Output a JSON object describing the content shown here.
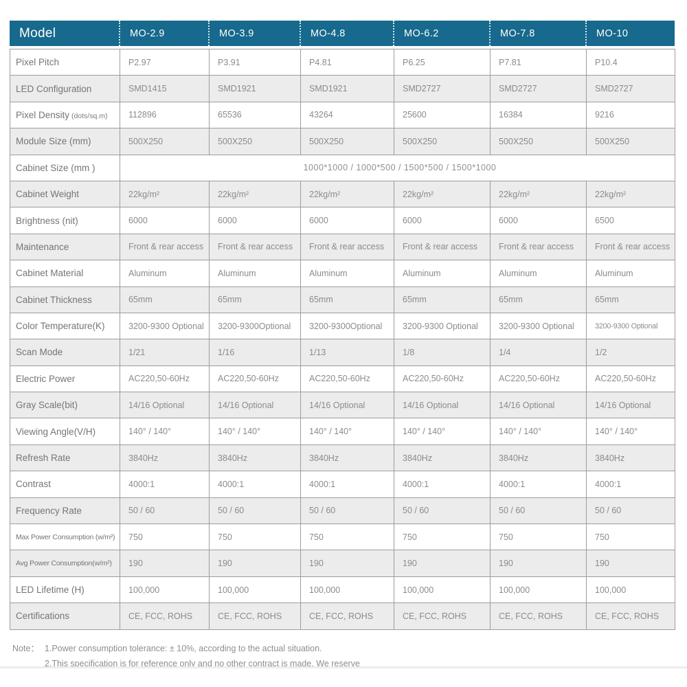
{
  "header": {
    "model_label": "Model",
    "columns": [
      "MO-2.9",
      "MO-3.9",
      "MO-4.8",
      "MO-6.2",
      "MO-7.8",
      "MO-10"
    ]
  },
  "rows": [
    {
      "label": "Pixel Pitch",
      "values": [
        "P2.97",
        "P3.91",
        "P4.81",
        "P6.25",
        "P7.81",
        "P10.4"
      ]
    },
    {
      "label": "LED Configuration",
      "values": [
        "SMD1415",
        "SMD1921",
        "SMD1921",
        "SMD2727",
        "SMD2727",
        "SMD2727"
      ]
    },
    {
      "label": "Pixel Density",
      "label_note": "(dots/sq.m)",
      "values": [
        "112896",
        "65536",
        "43264",
        "25600",
        "16384",
        "9216"
      ]
    },
    {
      "label": "Module Size (mm)",
      "values": [
        "500X250",
        "500X250",
        "500X250",
        "500X250",
        "500X250",
        "500X250"
      ]
    },
    {
      "label": "Cabinet Size (mm )",
      "merged_value": "1000*1000 / 1000*500 / 1500*500 / 1500*1000"
    },
    {
      "label": "Cabinet Weight",
      "values": [
        "22kg/m²",
        "22kg/m²",
        "22kg/m²",
        "22kg/m²",
        "22kg/m²",
        "22kg/m²"
      ]
    },
    {
      "label": "Brightness (nit)",
      "values": [
        "6000",
        "6000",
        "6000",
        "6000",
        "6000",
        "6500"
      ]
    },
    {
      "label": "Maintenance",
      "values": [
        "Front & rear access",
        "Front & rear access",
        "Front & rear access",
        "Front & rear access",
        "Front & rear access",
        "Front & rear access"
      ]
    },
    {
      "label": "Cabinet Material",
      "values": [
        "Aluminum",
        "Aluminum",
        "Aluminum",
        "Aluminum",
        "Aluminum",
        "Aluminum"
      ]
    },
    {
      "label": "Cabinet Thickness",
      "values": [
        "65mm",
        "65mm",
        "65mm",
        "65mm",
        "65mm",
        "65mm"
      ]
    },
    {
      "label": "Color Temperature(K)",
      "small_last": true,
      "values": [
        "3200-9300 Optional",
        "3200-9300Optional",
        "3200-9300Optional",
        "3200-9300 Optional",
        "3200-9300 Optional",
        "3200-9300 Optional"
      ]
    },
    {
      "label": "Scan Mode",
      "values": [
        "1/21",
        "1/16",
        "1/13",
        "1/8",
        "1/4",
        "1/2"
      ]
    },
    {
      "label": "Electric Power",
      "values": [
        "AC220,50-60Hz",
        "AC220,50-60Hz",
        "AC220,50-60Hz",
        "AC220,50-60Hz",
        "AC220,50-60Hz",
        "AC220,50-60Hz"
      ]
    },
    {
      "label": "Gray Scale(bit)",
      "values": [
        "14/16 Optional",
        "14/16 Optional",
        "14/16 Optional",
        "14/16 Optional",
        "14/16 Optional",
        "14/16 Optional"
      ]
    },
    {
      "label": "Viewing Angle(V/H)",
      "values": [
        "140° / 140°",
        "140° / 140°",
        "140° / 140°",
        "140° / 140°",
        "140° / 140°",
        "140° / 140°"
      ]
    },
    {
      "label": "Refresh Rate",
      "values": [
        "3840Hz",
        "3840Hz",
        "3840Hz",
        "3840Hz",
        "3840Hz",
        "3840Hz"
      ]
    },
    {
      "label": "Contrast",
      "values": [
        "4000:1",
        "4000:1",
        "4000:1",
        "4000:1",
        "4000:1",
        "4000:1"
      ]
    },
    {
      "label": "Frequency Rate",
      "values": [
        "50 / 60",
        "50 / 60",
        "50 / 60",
        "50 / 60",
        "50 / 60",
        "50 / 60"
      ]
    },
    {
      "label": "Max Power Consumption (w/m²)",
      "small": true,
      "values": [
        "750",
        "750",
        "750",
        "750",
        "750",
        "750"
      ]
    },
    {
      "label": "Avg Power Consumption(w/m²)",
      "small": true,
      "values": [
        "190",
        "190",
        "190",
        "190",
        "190",
        "190"
      ]
    },
    {
      "label": "LED Lifetime (H)",
      "values": [
        "100,000",
        "100,000",
        "100,000",
        "100,000",
        "100,000",
        "100,000"
      ]
    },
    {
      "label": "Certifications",
      "values": [
        "CE, FCC, ROHS",
        "CE, FCC, ROHS",
        "CE, FCC, ROHS",
        "CE, FCC, ROHS",
        "CE, FCC, ROHS",
        "CE, FCC, ROHS"
      ]
    }
  ],
  "notes": {
    "label": "Note：",
    "lines": [
      "1.Power consumption tolerance: ± 10%, according to the actual situation.",
      "2.This specification is for reference only and no other contract is made. We reserve"
    ]
  },
  "colors": {
    "header_bg": "#17698d",
    "header_text": "#ffffff",
    "row_alt_bg": "#ececec",
    "border": "#9c9c9c",
    "label_text": "#757575",
    "value_text": "#8b8b8b"
  }
}
